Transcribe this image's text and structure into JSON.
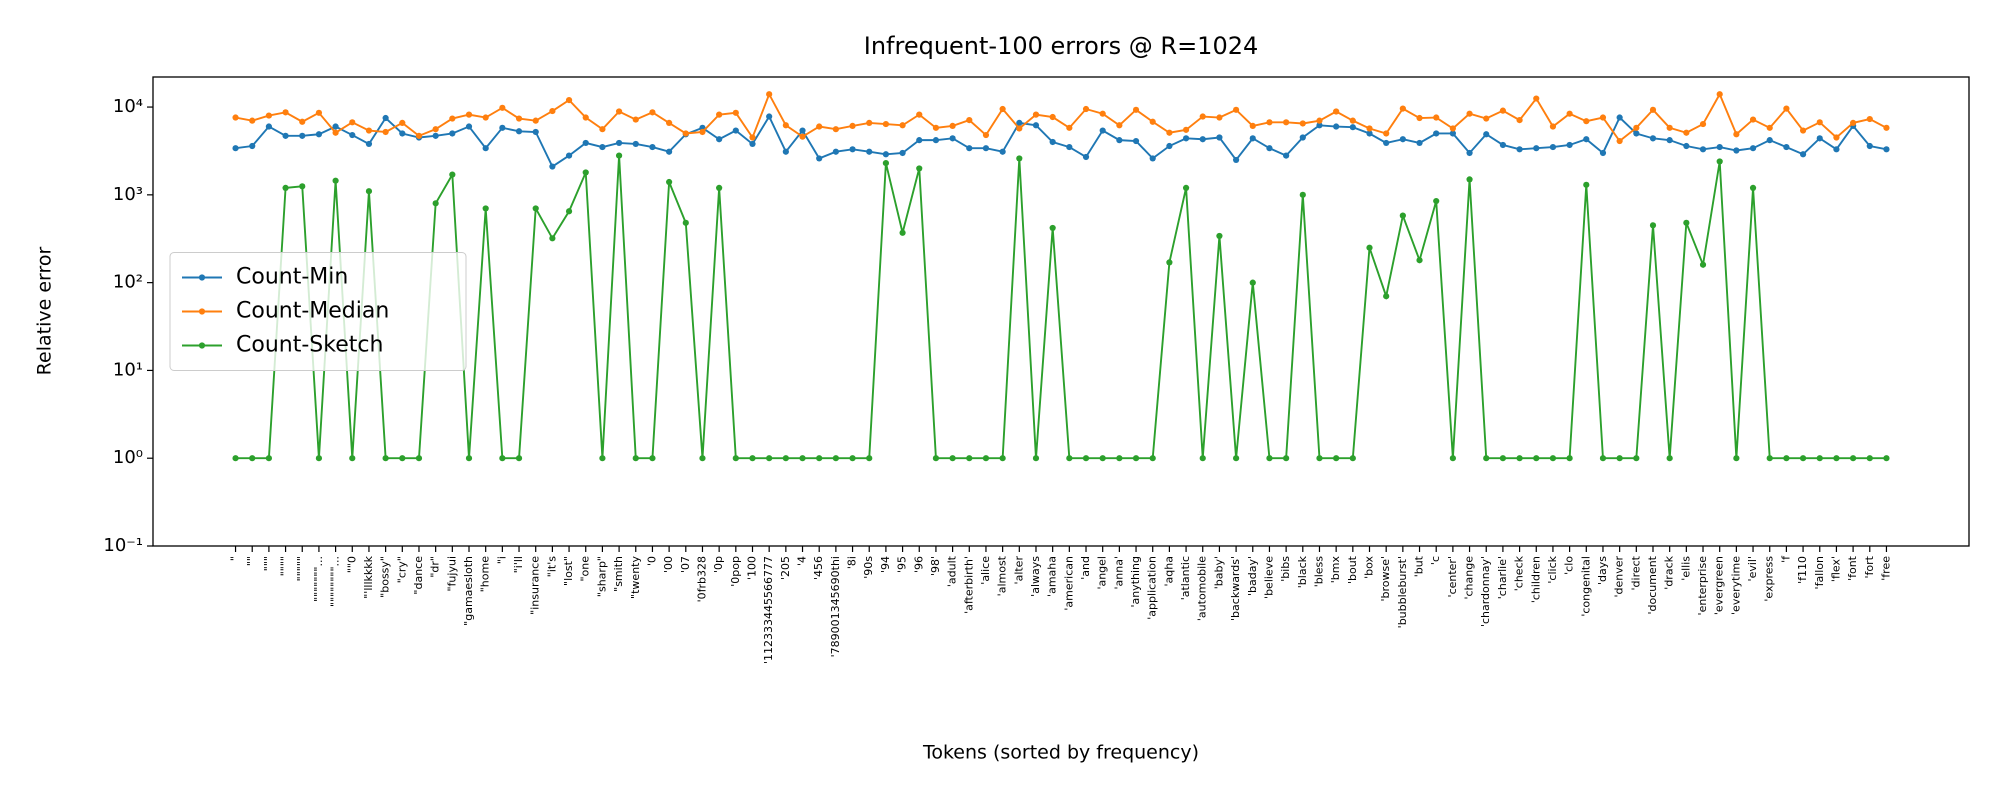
{
  "chart_data": {
    "type": "line",
    "title": "Infrequent-100 errors @ R=1024",
    "x_label": "Tokens (sorted by frequency)",
    "y_label": "Relative error",
    "log_y": true,
    "legend": "center left",
    "ylim": [
      0.1,
      22000
    ],
    "yticks": [
      {
        "value": 0.1,
        "label": "10⁻¹"
      },
      {
        "value": 1,
        "label": "10⁰"
      },
      {
        "value": 10,
        "label": "10¹"
      },
      {
        "value": 100,
        "label": "10²"
      },
      {
        "value": 1000,
        "label": "10³"
      },
      {
        "value": 10000,
        "label": "10⁴"
      }
    ],
    "categories": [
      "\"",
      "\"\"",
      "\"\"\"",
      "\"\"\"\"",
      "\"\"\"\"\"",
      "\"\"\"\"\"\"\"...",
      "\"\"\"\"\"\"\"\"...",
      "\"\"0",
      "\"'lllkkkk",
      "\"bossy\"",
      "\"cry\"",
      "\"dance",
      "\"dr\"",
      "\"fujyui",
      "\"gamaesloth",
      "\"home",
      "\"i",
      "\"i'll",
      "\"insurance",
      "\"it's",
      "\"lost\"",
      "\"one",
      "\"sharp\"",
      "\"smith",
      "\"twenty",
      "'0",
      "'00",
      "'07",
      "'0frb328",
      "'0p",
      "'0pop",
      "'100",
      "'112333445566777",
      "'205",
      "'4",
      "'456",
      "'78900134569​0thi",
      "'8i",
      "'90s",
      "'94",
      "'95",
      "'96",
      "'98'",
      "'adult",
      "'afterbirth'",
      "'alice",
      "'almost",
      "'alter",
      "'always",
      "'amaha",
      "'american",
      "'and",
      "'angel",
      "'anna'",
      "'anything",
      "'application",
      "'aqha",
      "'atlantic",
      "'automobile",
      "'baby'",
      "'backwards'",
      "'baday'",
      "'believe",
      "'bibs",
      "'black",
      "'bless",
      "'bmx",
      "'bout",
      "'box",
      "'browse'",
      "'bubbleburst'",
      "'but",
      "'c",
      "'center'",
      "'change",
      "'chardonnay'",
      "'charlie'",
      "'check",
      "'children",
      "'click",
      "'clo",
      "'congenital",
      "'days",
      "'denver",
      "'direct",
      "'document",
      "'drack",
      "'ellis",
      "'enterprise",
      "'evergreen",
      "'everytime",
      "'evil'",
      "'express",
      "'f",
      "'f110",
      "'fallon",
      "'flex'",
      "'font",
      "'fort",
      "'free"
    ],
    "series": [
      {
        "name": "Count-Min",
        "color": "#1f77b4",
        "values": [
          3400,
          3600,
          6000,
          4700,
          4700,
          4900,
          6000,
          4800,
          3800,
          7500,
          5000,
          4500,
          4700,
          5000,
          6000,
          3400,
          5800,
          5300,
          5200,
          2100,
          2800,
          3900,
          3500,
          3900,
          3800,
          3500,
          3100,
          4900,
          5800,
          4300,
          5400,
          3800,
          7800,
          3100,
          5400,
          2600,
          3100,
          3300,
          3100,
          2900,
          3000,
          4200,
          4200,
          4400,
          3400,
          3400,
          3100,
          6600,
          6200,
          4000,
          3500,
          2700,
          5400,
          4200,
          4100,
          2600,
          3600,
          4400,
          4300,
          4500,
          2500,
          4400,
          3400,
          2800,
          4500,
          6200,
          6000,
          5900,
          5000,
          3900,
          4300,
          3900,
          5000,
          5000,
          3000,
          4900,
          3700,
          3300,
          3400,
          3500,
          3700,
          4300,
          3000,
          7600,
          5000,
          4400,
          4200,
          3600,
          3300,
          3500,
          3200,
          3400,
          4200,
          3500,
          2900,
          4400,
          3300,
          6100,
          3600,
          3300
        ]
      },
      {
        "name": "Count-Median",
        "color": "#ff7f0e",
        "values": [
          7600,
          7000,
          8000,
          8700,
          6800,
          8600,
          5100,
          6700,
          5400,
          5200,
          6600,
          4700,
          5600,
          7400,
          8200,
          7600,
          9800,
          7400,
          7000,
          9000,
          12000,
          7600,
          5600,
          8900,
          7200,
          8700,
          6600,
          5000,
          5200,
          8200,
          8600,
          4500,
          14000,
          6200,
          4600,
          6000,
          5600,
          6100,
          6600,
          6400,
          6200,
          8200,
          5800,
          6100,
          7100,
          4800,
          9500,
          5700,
          8200,
          7700,
          5800,
          9500,
          8400,
          6200,
          9300,
          6800,
          5100,
          5500,
          7800,
          7600,
          9300,
          6100,
          6700,
          6700,
          6500,
          7000,
          8900,
          7000,
          5700,
          5000,
          9600,
          7500,
          7600,
          5700,
          8400,
          7400,
          9100,
          7100,
          12500,
          6000,
          8400,
          6900,
          7600,
          4100,
          5800,
          9300,
          5800,
          5100,
          6400,
          14000,
          4900,
          7200,
          5800,
          9600,
          5400,
          6700,
          4500,
          6600,
          7300,
          5800
        ]
      },
      {
        "name": "Count-Sketch",
        "color": "#2ca02c",
        "values": [
          1,
          1,
          1,
          1200,
          1250,
          1,
          1450,
          1,
          1100,
          1,
          1,
          1,
          800,
          1700,
          1,
          700,
          1,
          1,
          700,
          320,
          650,
          1800,
          1,
          2800,
          1,
          1,
          1400,
          480,
          1,
          1200,
          1,
          1,
          1,
          1,
          1,
          1,
          1,
          1,
          1,
          2300,
          370,
          2000,
          1,
          1,
          1,
          1,
          1,
          2600,
          1,
          420,
          1,
          1,
          1,
          1,
          1,
          1,
          170,
          1200,
          1,
          340,
          1,
          100,
          1,
          1,
          1000,
          1,
          1,
          1,
          250,
          70,
          580,
          180,
          850,
          1,
          1500,
          1,
          1,
          1,
          1,
          1,
          1,
          1300,
          1,
          1,
          1,
          450,
          1,
          480,
          160,
          2400,
          1,
          1200,
          1,
          1,
          1,
          1,
          1,
          1,
          1,
          1
        ]
      }
    ]
  }
}
